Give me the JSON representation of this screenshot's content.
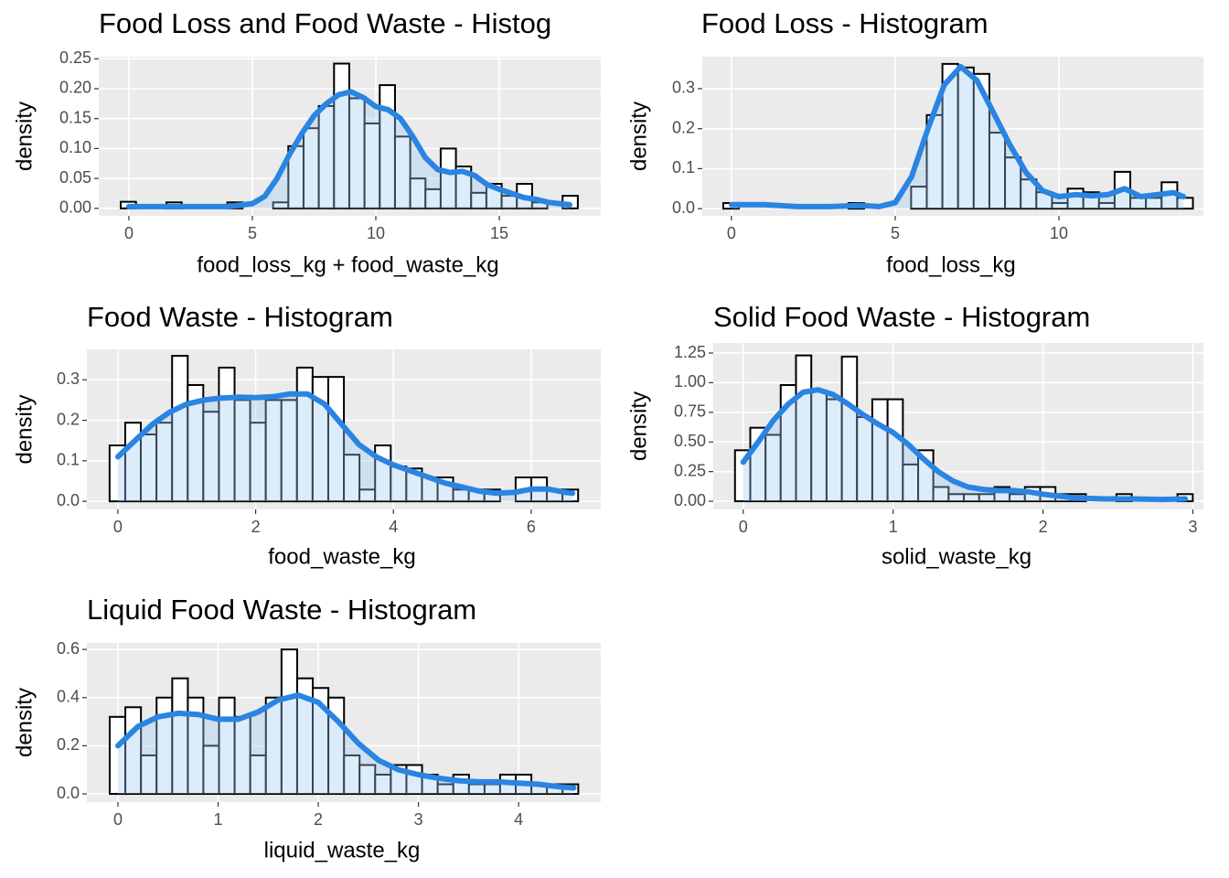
{
  "chart_data": [
    {
      "type": "histogram",
      "title": "Food Loss and Food Waste - Histog",
      "xlabel": "food_loss_kg + food_waste_kg",
      "ylabel": "density",
      "bins": [
        -0.33,
        0.287,
        0.904,
        1.521,
        2.138,
        2.755,
        3.372,
        3.989,
        4.606,
        5.223,
        5.84,
        6.457,
        7.074,
        7.691,
        8.308,
        8.925,
        9.542,
        10.159,
        10.776,
        11.393,
        12.01,
        12.627,
        13.244,
        13.861,
        14.478,
        15.095,
        15.712,
        16.329,
        16.946,
        17.563,
        18.18
      ],
      "values": [
        0.011,
        0,
        0,
        0.01,
        0,
        0,
        0,
        0.01,
        0,
        0,
        0.01,
        0.104,
        0.134,
        0.171,
        0.242,
        0.184,
        0.142,
        0.206,
        0.12,
        0.05,
        0.032,
        0.1,
        0.07,
        0.026,
        0.041,
        0.021,
        0.041,
        0.01,
        0,
        0.021
      ],
      "density": {
        "x": [
          0,
          2,
          4,
          5,
          5.5,
          6,
          6.5,
          7,
          7.5,
          8,
          8.5,
          9,
          9.5,
          10,
          10.5,
          11,
          11.5,
          12,
          12.5,
          13,
          13.5,
          14,
          14.5,
          15,
          15.5,
          16,
          16.5,
          17,
          17.85
        ],
        "y": [
          0.003,
          0.003,
          0.003,
          0.008,
          0.02,
          0.05,
          0.09,
          0.125,
          0.155,
          0.175,
          0.19,
          0.195,
          0.185,
          0.17,
          0.165,
          0.15,
          0.12,
          0.085,
          0.065,
          0.06,
          0.062,
          0.055,
          0.04,
          0.032,
          0.025,
          0.018,
          0.015,
          0.01,
          0.006
        ]
      },
      "xlim": [
        -1.22,
        19.11
      ],
      "ylim": [
        -0.0125,
        0.2535
      ],
      "xticks": [
        0,
        5,
        10,
        15
      ],
      "yticks": [
        {
          "value": 0,
          "label": "0.00"
        },
        0.05,
        {
          "value": 0.1,
          "label": "0.10"
        },
        0.15,
        {
          "value": 0.2,
          "label": "0.20"
        },
        0.25
      ],
      "bar_fill": "#ffffff",
      "bar_edge": "#000000",
      "line_color": "#2a84e2",
      "area_color": "#9cc9f2",
      "grid": true
    },
    {
      "type": "histogram",
      "title": "Food Loss - Histogram",
      "xlabel": "food_loss_kg",
      "ylabel": "density",
      "bins": [
        -0.25,
        0.228,
        0.706,
        1.184,
        1.662,
        2.14,
        2.618,
        3.096,
        3.574,
        4.052,
        4.53,
        5.008,
        5.486,
        5.964,
        6.442,
        6.92,
        7.398,
        7.876,
        8.354,
        8.832,
        9.31,
        9.788,
        10.266,
        10.744,
        11.222,
        11.7,
        12.178,
        12.656,
        13.134,
        13.612,
        14.09
      ],
      "values": [
        0.014,
        0,
        0,
        0,
        0,
        0,
        0,
        0,
        0.014,
        0,
        0,
        0,
        0.055,
        0.234,
        0.362,
        0.353,
        0.337,
        0.19,
        0.128,
        0.073,
        0.041,
        0.014,
        0.05,
        0.041,
        0.014,
        0.092,
        0.027,
        0.027,
        0.066,
        0.027
      ],
      "density": {
        "x": [
          0,
          1,
          2,
          3,
          4,
          4.5,
          5,
          5.5,
          6,
          6.5,
          7,
          7.5,
          8,
          8.5,
          9,
          9.5,
          10,
          10.5,
          11,
          11.5,
          12,
          12.5,
          13,
          13.5,
          13.8
        ],
        "y": [
          0.01,
          0.01,
          0.005,
          0.005,
          0.008,
          0.005,
          0.015,
          0.08,
          0.2,
          0.31,
          0.355,
          0.32,
          0.24,
          0.16,
          0.09,
          0.045,
          0.03,
          0.035,
          0.032,
          0.035,
          0.05,
          0.03,
          0.035,
          0.04,
          0.03
        ]
      },
      "xlim": [
        -0.89,
        14.41
      ],
      "ylim": [
        -0.018,
        0.38
      ],
      "xticks": [
        0,
        5,
        10
      ],
      "yticks": [
        {
          "value": 0,
          "label": "0.0"
        },
        0.1,
        0.2,
        0.3
      ],
      "bar_fill": "#ffffff",
      "bar_edge": "#000000",
      "line_color": "#2a84e2",
      "area_color": "#9cc9f2",
      "grid": true
    },
    {
      "type": "histogram",
      "title": "Food Waste - Histogram",
      "xlabel": "food_waste_kg",
      "ylabel": "density",
      "bins": [
        -0.12,
        0.107,
        0.333,
        0.56,
        0.787,
        1.014,
        1.24,
        1.467,
        1.694,
        1.92,
        2.147,
        2.374,
        2.6,
        2.827,
        3.054,
        3.281,
        3.507,
        3.734,
        3.961,
        4.187,
        4.414,
        4.641,
        4.867,
        5.094,
        5.321,
        5.548,
        5.774,
        6.001,
        6.228,
        6.454,
        6.681
      ],
      "values": [
        0.138,
        0.194,
        0.165,
        0.194,
        0.359,
        0.287,
        0.221,
        0.33,
        0.25,
        0.194,
        0.25,
        0.25,
        0.33,
        0.307,
        0.307,
        0.115,
        0.029,
        0.138,
        0.086,
        0.081,
        0.059,
        0.059,
        0.029,
        0.029,
        0.029,
        0,
        0.059,
        0.059,
        0.029,
        0.029
      ],
      "density": {
        "x": [
          0,
          0.25,
          0.5,
          0.75,
          1,
          1.25,
          1.5,
          1.75,
          2,
          2.25,
          2.5,
          2.75,
          3,
          3.25,
          3.5,
          3.75,
          4,
          4.25,
          4.5,
          4.75,
          5,
          5.25,
          5.5,
          5.75,
          6,
          6.25,
          6.5,
          6.6
        ],
        "y": [
          0.11,
          0.15,
          0.19,
          0.22,
          0.24,
          0.25,
          0.255,
          0.257,
          0.256,
          0.258,
          0.265,
          0.265,
          0.24,
          0.19,
          0.14,
          0.11,
          0.09,
          0.075,
          0.06,
          0.045,
          0.035,
          0.025,
          0.02,
          0.022,
          0.03,
          0.03,
          0.022,
          0.02
        ]
      },
      "xlim": [
        -0.45,
        7.01
      ],
      "ylim": [
        -0.02,
        0.375
      ],
      "xticks": [
        0,
        2,
        4,
        6
      ],
      "yticks": [
        {
          "value": 0,
          "label": "0.0"
        },
        0.1,
        0.2,
        0.3
      ],
      "bar_fill": "#ffffff",
      "bar_edge": "#000000",
      "line_color": "#2a84e2",
      "area_color": "#9cc9f2",
      "grid": true
    },
    {
      "type": "histogram",
      "title": "Solid Food Waste - Histogram",
      "xlabel": "solid_waste_kg",
      "ylabel": "density",
      "bins": [
        -0.055,
        0.047,
        0.149,
        0.25,
        0.352,
        0.454,
        0.556,
        0.658,
        0.759,
        0.861,
        0.963,
        1.065,
        1.167,
        1.268,
        1.37,
        1.472,
        1.574,
        1.676,
        1.777,
        1.879,
        1.981,
        2.083,
        2.185,
        2.286,
        2.388,
        2.49,
        2.592,
        2.694,
        2.795,
        2.897,
        2.999
      ],
      "values": [
        0.43,
        0.62,
        0.56,
        0.98,
        1.23,
        0.93,
        0.86,
        1.22,
        0.71,
        0.86,
        0.86,
        0.31,
        0.43,
        0.12,
        0.06,
        0.06,
        0.06,
        0.12,
        0.06,
        0.12,
        0.12,
        0.06,
        0.06,
        0,
        0,
        0.06,
        0,
        0,
        0,
        0.06
      ],
      "density": {
        "x": [
          0,
          0.1,
          0.2,
          0.3,
          0.4,
          0.5,
          0.6,
          0.7,
          0.8,
          0.9,
          1,
          1.1,
          1.2,
          1.3,
          1.4,
          1.5,
          1.6,
          1.7,
          1.8,
          1.9,
          2,
          2.2,
          2.4,
          2.6,
          2.8,
          2.95
        ],
        "y": [
          0.33,
          0.5,
          0.68,
          0.82,
          0.92,
          0.94,
          0.9,
          0.82,
          0.73,
          0.65,
          0.58,
          0.48,
          0.36,
          0.25,
          0.17,
          0.12,
          0.1,
          0.09,
          0.09,
          0.08,
          0.06,
          0.03,
          0.02,
          0.02,
          0.015,
          0.02
        ]
      },
      "xlim": [
        -0.2,
        3.07
      ],
      "ylim": [
        -0.069,
        1.335
      ],
      "xticks": [
        0,
        1,
        2,
        3
      ],
      "yticks": [
        {
          "value": 0,
          "label": "0.00"
        },
        0.25,
        {
          "value": 0.5,
          "label": "0.50"
        },
        0.75,
        {
          "value": 1,
          "label": "1.00"
        },
        1.25
      ],
      "bar_fill": "#ffffff",
      "bar_edge": "#000000",
      "line_color": "#2a84e2",
      "area_color": "#9cc9f2",
      "grid": true
    },
    {
      "type": "histogram",
      "title": "Liquid Food Waste - Histogram",
      "xlabel": "liquid_waste_kg",
      "ylabel": "density",
      "bins": [
        -0.082,
        0.074,
        0.23,
        0.386,
        0.542,
        0.698,
        0.853,
        1.009,
        1.165,
        1.321,
        1.477,
        1.633,
        1.789,
        1.945,
        2.101,
        2.257,
        2.412,
        2.568,
        2.724,
        2.88,
        3.036,
        3.192,
        3.348,
        3.504,
        3.66,
        3.815,
        3.971,
        4.127,
        4.283,
        4.439,
        4.595
      ],
      "values": [
        0.32,
        0.36,
        0.16,
        0.4,
        0.48,
        0.4,
        0.2,
        0.4,
        0.32,
        0.16,
        0.4,
        0.6,
        0.48,
        0.44,
        0.4,
        0.16,
        0.12,
        0.08,
        0.12,
        0.12,
        0.08,
        0.04,
        0.08,
        0.04,
        0.04,
        0.08,
        0.08,
        0.04,
        0.04,
        0.04
      ],
      "density": {
        "x": [
          0,
          0.2,
          0.4,
          0.6,
          0.8,
          1,
          1.2,
          1.4,
          1.6,
          1.8,
          2,
          2.2,
          2.4,
          2.6,
          2.8,
          3,
          3.2,
          3.4,
          3.6,
          3.8,
          4,
          4.2,
          4.4,
          4.55
        ],
        "y": [
          0.2,
          0.28,
          0.32,
          0.335,
          0.33,
          0.31,
          0.31,
          0.34,
          0.39,
          0.41,
          0.38,
          0.3,
          0.21,
          0.14,
          0.1,
          0.08,
          0.065,
          0.055,
          0.05,
          0.05,
          0.045,
          0.04,
          0.03,
          0.025
        ]
      },
      "xlim": [
        -0.31,
        4.82
      ],
      "ylim": [
        -0.034,
        0.627
      ],
      "xticks": [
        0,
        1,
        2,
        3,
        4
      ],
      "yticks": [
        {
          "value": 0,
          "label": "0.0"
        },
        0.2,
        0.4,
        0.6
      ],
      "bar_fill": "#ffffff",
      "bar_edge": "#000000",
      "line_color": "#2a84e2",
      "area_color": "#9cc9f2",
      "grid": true
    }
  ]
}
